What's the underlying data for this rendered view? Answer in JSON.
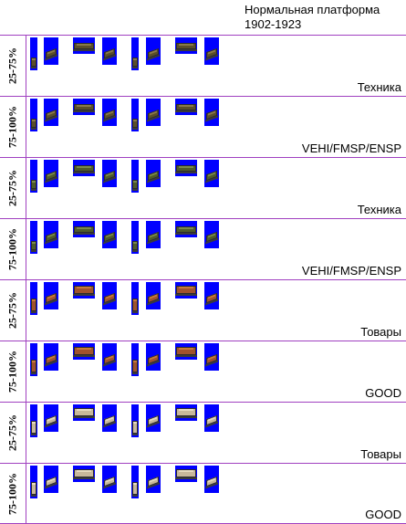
{
  "header": {
    "title": "Нормальная платформа",
    "years": "1902-1923"
  },
  "rows": [
    {
      "percent": "25-75%",
      "caption": "Техника",
      "cargo": "vehicle",
      "load_color": "#5a4e2a",
      "accent": "#8a7a4a"
    },
    {
      "percent": "75-100%",
      "caption": "VEHI/FMSP/ENSP",
      "cargo": "vehicle",
      "load_color": "#5a4e2a",
      "accent": "#8a7a4a"
    },
    {
      "percent": "25-75%",
      "caption": "Техника",
      "cargo": "vehicle",
      "load_color": "#4e5a2a",
      "accent": "#7a8a4a"
    },
    {
      "percent": "75-100%",
      "caption": "VEHI/FMSP/ENSP",
      "cargo": "vehicle",
      "load_color": "#4e5a2a",
      "accent": "#7a8a4a"
    },
    {
      "percent": "25-75%",
      "caption": "Товары",
      "cargo": "goods",
      "load_color": "#a0522d",
      "accent": "#c87a3a"
    },
    {
      "percent": "75-100%",
      "caption": "GOOD",
      "cargo": "goods",
      "load_color": "#a0522d",
      "accent": "#c87a3a"
    },
    {
      "percent": "25-75%",
      "caption": "Товары",
      "cargo": "goods",
      "load_color": "#c8b89a",
      "accent": "#e8dcc0"
    },
    {
      "percent": "75-100%",
      "caption": "GOOD",
      "cargo": "goods",
      "load_color": "#c8b89a",
      "accent": "#e8dcc0"
    }
  ],
  "colors": {
    "grid_line": "#a040c0",
    "sprite_background": "#0000ff"
  }
}
